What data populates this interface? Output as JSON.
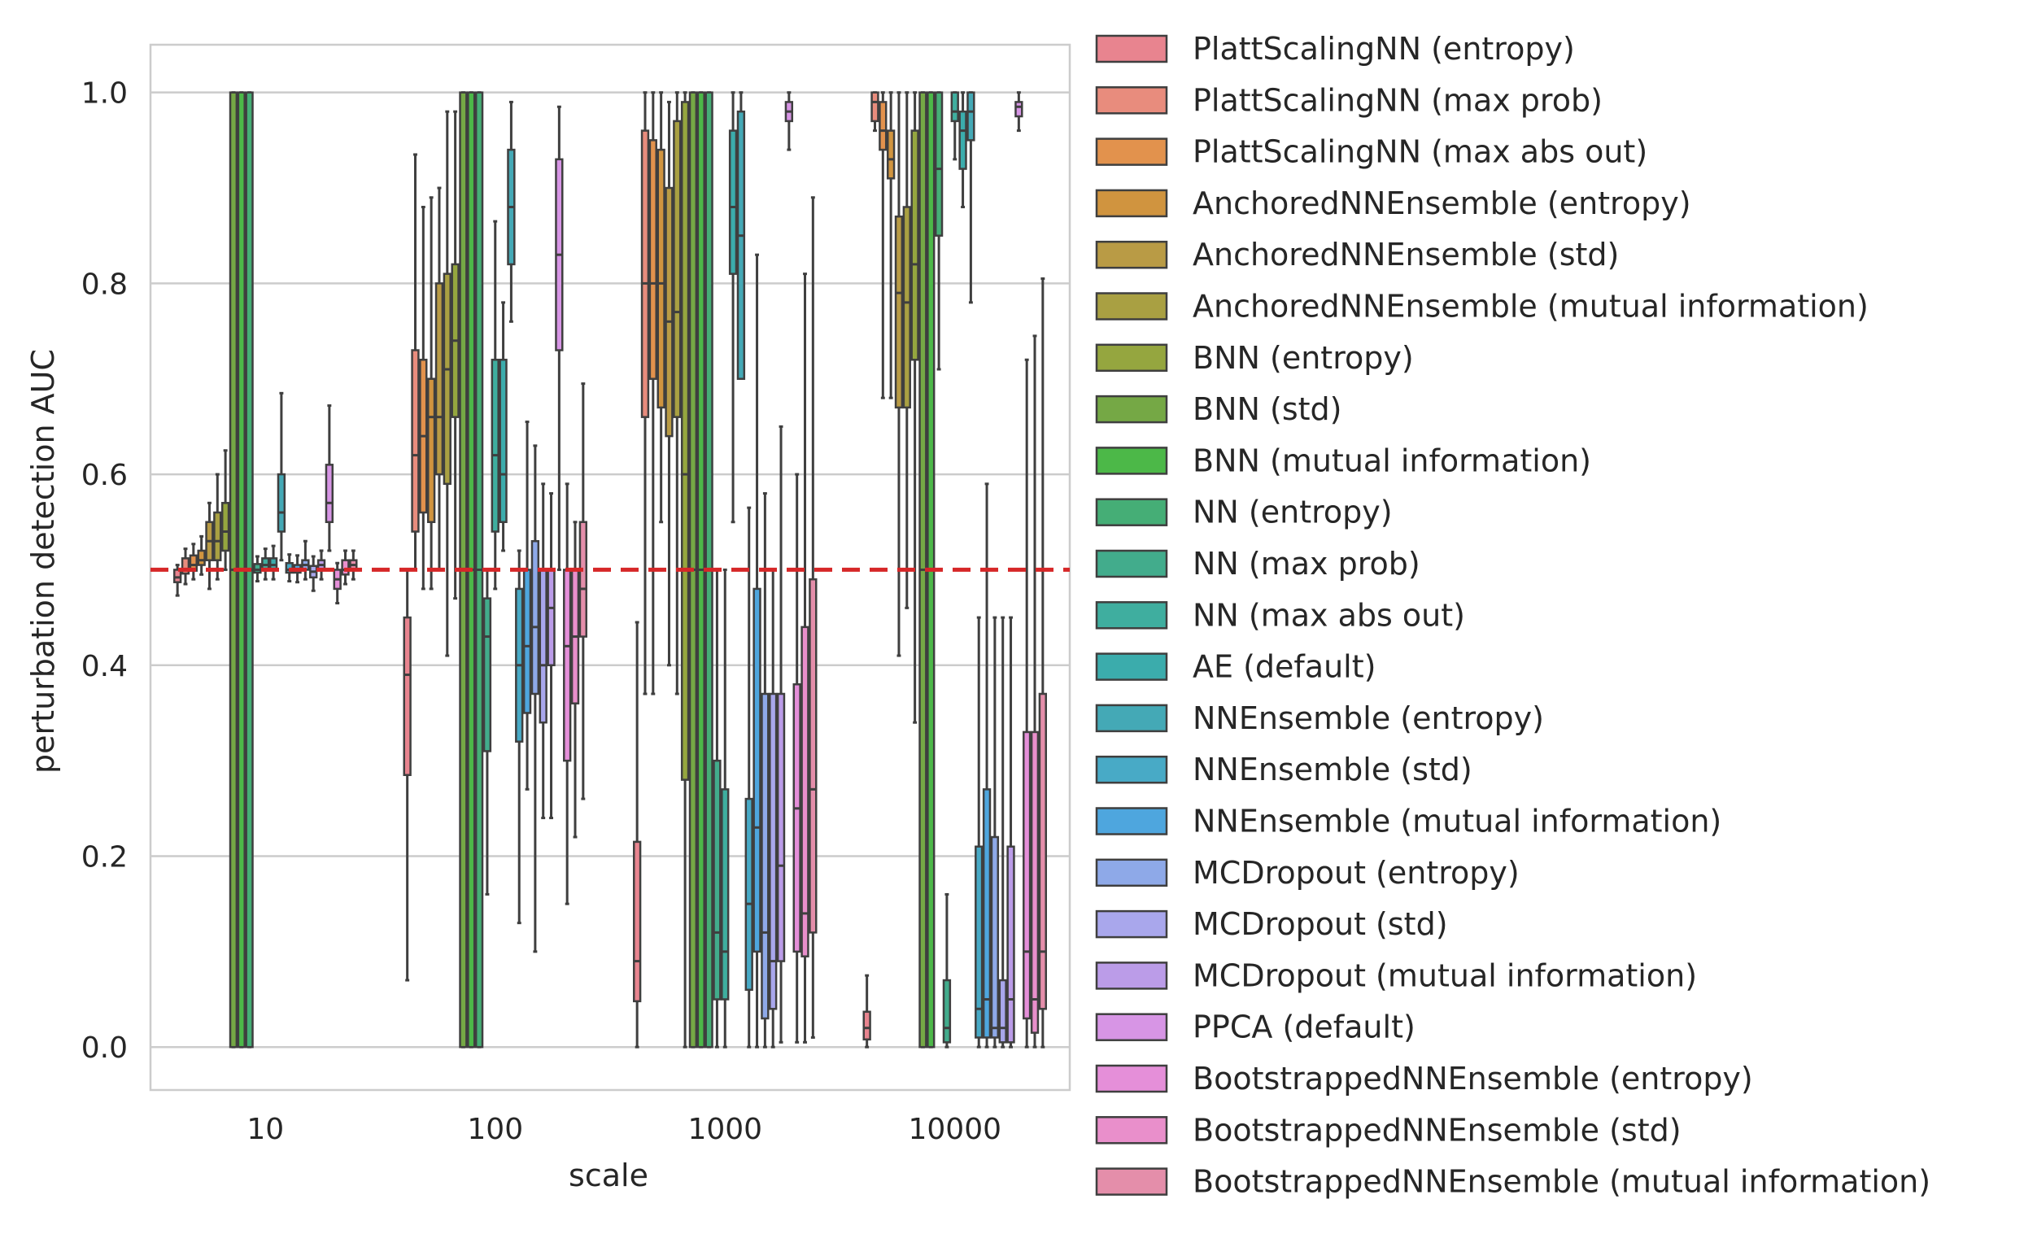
{
  "chart_data": {
    "type": "box",
    "title": "",
    "xlabel": "scale",
    "ylabel": "perturbation detection AUC",
    "categories": [
      "10",
      "100",
      "1000",
      "10000"
    ],
    "ylim": [
      -0.045,
      1.05
    ],
    "yticks": [
      0.0,
      0.2,
      0.4,
      0.6,
      0.8,
      1.0
    ],
    "ytick_labels": [
      "0.0",
      "0.2",
      "0.4",
      "0.6",
      "0.8",
      "1.0"
    ],
    "grid": true,
    "reference_line": {
      "value": 0.5,
      "color": "#d62728",
      "style": "dashed"
    },
    "legend_position": "outside right",
    "series": [
      {
        "name": "PlattScalingNN (entropy)",
        "color": "#e8848f",
        "boxes": [
          [
            0.473,
            0.487,
            0.492,
            0.5,
            0.505
          ],
          [
            0.07,
            0.285,
            0.39,
            0.45,
            0.5
          ],
          [
            0.0,
            0.048,
            0.09,
            0.215,
            0.445
          ],
          [
            0.0,
            0.008,
            0.02,
            0.037,
            0.075
          ]
        ]
      },
      {
        "name": "PlattScalingNN (max prob)",
        "color": "#e88c7d",
        "boxes": [
          [
            0.485,
            0.496,
            0.5,
            0.512,
            0.522
          ],
          [
            0.5,
            0.54,
            0.62,
            0.73,
            0.935
          ],
          [
            0.37,
            0.66,
            0.8,
            0.96,
            1.0
          ],
          [
            0.96,
            0.97,
            0.99,
            1.0,
            1.0
          ]
        ]
      },
      {
        "name": "PlattScalingNN (max abs out)",
        "color": "#e2924d",
        "boxes": [
          [
            0.49,
            0.499,
            0.505,
            0.515,
            0.527
          ],
          [
            0.48,
            0.56,
            0.64,
            0.72,
            0.88
          ],
          [
            0.37,
            0.7,
            0.8,
            0.95,
            1.0
          ],
          [
            0.68,
            0.94,
            0.96,
            0.99,
            1.0
          ]
        ]
      },
      {
        "name": "AnchoredNNEnsemble (entropy)",
        "color": "#d0943f",
        "boxes": [
          [
            0.495,
            0.505,
            0.51,
            0.52,
            0.535
          ],
          [
            0.48,
            0.55,
            0.66,
            0.7,
            0.89
          ],
          [
            0.55,
            0.67,
            0.8,
            0.94,
            1.0
          ],
          [
            0.68,
            0.91,
            0.93,
            0.96,
            1.0
          ]
        ]
      },
      {
        "name": "AnchoredNNEnsemble (std)",
        "color": "#b99b45",
        "boxes": [
          [
            0.48,
            0.51,
            0.53,
            0.55,
            0.57
          ],
          [
            0.5,
            0.6,
            0.66,
            0.8,
            0.9
          ],
          [
            0.4,
            0.64,
            0.76,
            0.9,
            0.99
          ],
          [
            0.41,
            0.67,
            0.79,
            0.87,
            1.0
          ]
        ]
      },
      {
        "name": "AnchoredNNEnsemble (mutual information)",
        "color": "#a9a042",
        "boxes": [
          [
            0.49,
            0.51,
            0.53,
            0.56,
            0.6
          ],
          [
            0.41,
            0.59,
            0.71,
            0.81,
            0.98
          ],
          [
            0.37,
            0.66,
            0.77,
            0.97,
            1.0
          ],
          [
            0.46,
            0.67,
            0.78,
            0.88,
            1.0
          ]
        ]
      },
      {
        "name": "BNN (entropy)",
        "color": "#95a63f",
        "boxes": [
          [
            0.5,
            0.52,
            0.54,
            0.57,
            0.625
          ],
          [
            0.47,
            0.66,
            0.74,
            0.82,
            0.98
          ],
          [
            0.0,
            0.28,
            0.6,
            0.99,
            1.0
          ],
          [
            0.34,
            0.72,
            0.82,
            0.96,
            1.0
          ]
        ]
      },
      {
        "name": "BNN (std)",
        "color": "#75a845",
        "boxes": [
          [
            0.0,
            0.0,
            0.5,
            1.0,
            1.0
          ],
          [
            0.0,
            0.0,
            0.5,
            1.0,
            1.0
          ],
          [
            0.0,
            0.0,
            0.5,
            1.0,
            1.0
          ],
          [
            0.0,
            0.0,
            0.5,
            1.0,
            1.0
          ]
        ]
      },
      {
        "name": "BNN (mutual information)",
        "color": "#4cb848",
        "boxes": [
          [
            0.0,
            0.0,
            0.5,
            1.0,
            1.0
          ],
          [
            0.0,
            0.0,
            0.5,
            1.0,
            1.0
          ],
          [
            0.0,
            0.0,
            0.5,
            1.0,
            1.0
          ],
          [
            0.0,
            0.0,
            0.5,
            1.0,
            1.0
          ]
        ]
      },
      {
        "name": "NN (entropy)",
        "color": "#45ae76",
        "boxes": [
          [
            0.0,
            0.0,
            0.5,
            1.0,
            1.0
          ],
          [
            0.0,
            0.0,
            0.5,
            1.0,
            1.0
          ],
          [
            0.0,
            0.0,
            0.5,
            1.0,
            1.0
          ],
          [
            0.71,
            0.85,
            0.92,
            1.0,
            1.0
          ]
        ]
      },
      {
        "name": "NN (max prob)",
        "color": "#42ac8c",
        "boxes": [
          [
            0.488,
            0.497,
            0.5,
            0.506,
            0.514
          ],
          [
            0.16,
            0.31,
            0.43,
            0.47,
            0.5
          ],
          [
            0.0,
            0.05,
            0.12,
            0.3,
            0.5
          ],
          [
            0.0,
            0.005,
            0.02,
            0.07,
            0.16
          ]
        ]
      },
      {
        "name": "NN (max abs out)",
        "color": "#3fae9f",
        "boxes": [
          [
            0.49,
            0.5,
            0.505,
            0.512,
            0.522
          ],
          [
            0.48,
            0.54,
            0.62,
            0.72,
            0.865
          ],
          [
            0.0,
            0.05,
            0.1,
            0.27,
            0.5
          ],
          [
            0.93,
            0.97,
            0.98,
            1.0,
            1.0
          ]
        ]
      },
      {
        "name": "AE (default)",
        "color": "#3bacac",
        "boxes": [
          [
            0.49,
            0.5,
            0.505,
            0.512,
            0.525
          ],
          [
            0.52,
            0.55,
            0.6,
            0.72,
            0.78
          ],
          [
            0.55,
            0.81,
            0.88,
            0.96,
            1.0
          ],
          [
            0.88,
            0.92,
            0.96,
            0.98,
            1.0
          ]
        ]
      },
      {
        "name": "NNEnsemble (entropy)",
        "color": "#44a9b6",
        "boxes": [
          [
            0.51,
            0.54,
            0.56,
            0.6,
            0.685
          ],
          [
            0.76,
            0.82,
            0.88,
            0.94,
            0.99
          ],
          [
            0.74,
            0.7,
            0.85,
            0.98,
            1.0
          ],
          [
            0.78,
            0.95,
            0.98,
            1.0,
            1.0
          ]
        ]
      },
      {
        "name": "NNEnsemble (std)",
        "color": "#48aac6",
        "boxes": [
          [
            0.488,
            0.497,
            0.5,
            0.507,
            0.516
          ],
          [
            0.13,
            0.32,
            0.4,
            0.48,
            0.52
          ],
          [
            0.0,
            0.06,
            0.15,
            0.26,
            0.565
          ],
          [
            0.0,
            0.01,
            0.04,
            0.21,
            0.45
          ]
        ]
      },
      {
        "name": "NNEnsemble (mutual information)",
        "color": "#4ea6de",
        "boxes": [
          [
            0.487,
            0.497,
            0.5,
            0.505,
            0.515
          ],
          [
            0.27,
            0.35,
            0.42,
            0.5,
            0.655
          ],
          [
            0.0,
            0.1,
            0.23,
            0.48,
            0.83
          ],
          [
            0.0,
            0.01,
            0.05,
            0.27,
            0.59
          ]
        ]
      },
      {
        "name": "MCDropout (entropy)",
        "color": "#8ea9e8",
        "boxes": [
          [
            0.49,
            0.5,
            0.505,
            0.51,
            0.53
          ],
          [
            0.1,
            0.37,
            0.44,
            0.53,
            0.63
          ],
          [
            0.0,
            0.03,
            0.12,
            0.37,
            0.58
          ],
          [
            0.0,
            0.01,
            0.02,
            0.22,
            0.45
          ]
        ]
      },
      {
        "name": "MCDropout (std)",
        "color": "#a9a7ec",
        "boxes": [
          [
            0.478,
            0.492,
            0.498,
            0.504,
            0.514
          ],
          [
            0.24,
            0.34,
            0.4,
            0.5,
            0.59
          ],
          [
            0.0,
            0.04,
            0.09,
            0.37,
            0.5
          ],
          [
            0.0,
            0.005,
            0.02,
            0.07,
            0.45
          ]
        ]
      },
      {
        "name": "MCDropout (mutual information)",
        "color": "#bb9ce8",
        "boxes": [
          [
            0.49,
            0.5,
            0.505,
            0.51,
            0.52
          ],
          [
            0.24,
            0.4,
            0.46,
            0.5,
            0.58
          ],
          [
            0.005,
            0.09,
            0.19,
            0.37,
            0.65
          ],
          [
            0.0,
            0.005,
            0.05,
            0.21,
            0.45
          ]
        ]
      },
      {
        "name": "PPCA (default)",
        "color": "#d795e5",
        "boxes": [
          [
            0.52,
            0.55,
            0.57,
            0.61,
            0.672
          ],
          [
            0.5,
            0.73,
            0.83,
            0.93,
            0.985
          ],
          [
            0.94,
            0.97,
            0.98,
            0.99,
            1.0
          ],
          [
            0.96,
            0.975,
            0.985,
            0.99,
            1.0
          ]
        ]
      },
      {
        "name": "BootstrappedNNEnsemble (entropy)",
        "color": "#e58fd9",
        "boxes": [
          [
            0.465,
            0.48,
            0.49,
            0.5,
            0.507
          ],
          [
            0.15,
            0.3,
            0.42,
            0.5,
            0.59
          ],
          [
            0.005,
            0.1,
            0.25,
            0.38,
            0.6
          ],
          [
            0.0,
            0.03,
            0.1,
            0.33,
            0.72
          ]
        ]
      },
      {
        "name": "BootstrappedNNEnsemble (std)",
        "color": "#e98fcb",
        "boxes": [
          [
            0.485,
            0.495,
            0.5,
            0.51,
            0.52
          ],
          [
            0.22,
            0.36,
            0.43,
            0.5,
            0.55
          ],
          [
            0.005,
            0.095,
            0.14,
            0.44,
            0.81
          ],
          [
            0.0,
            0.015,
            0.05,
            0.33,
            0.745
          ]
        ]
      },
      {
        "name": "BootstrappedNNEnsemble (mutual information)",
        "color": "#e48eaa",
        "boxes": [
          [
            0.49,
            0.5,
            0.505,
            0.51,
            0.52
          ],
          [
            0.26,
            0.43,
            0.48,
            0.55,
            0.695
          ],
          [
            0.01,
            0.12,
            0.27,
            0.49,
            0.89
          ],
          [
            0.0,
            0.04,
            0.1,
            0.37,
            0.805
          ]
        ]
      }
    ]
  }
}
